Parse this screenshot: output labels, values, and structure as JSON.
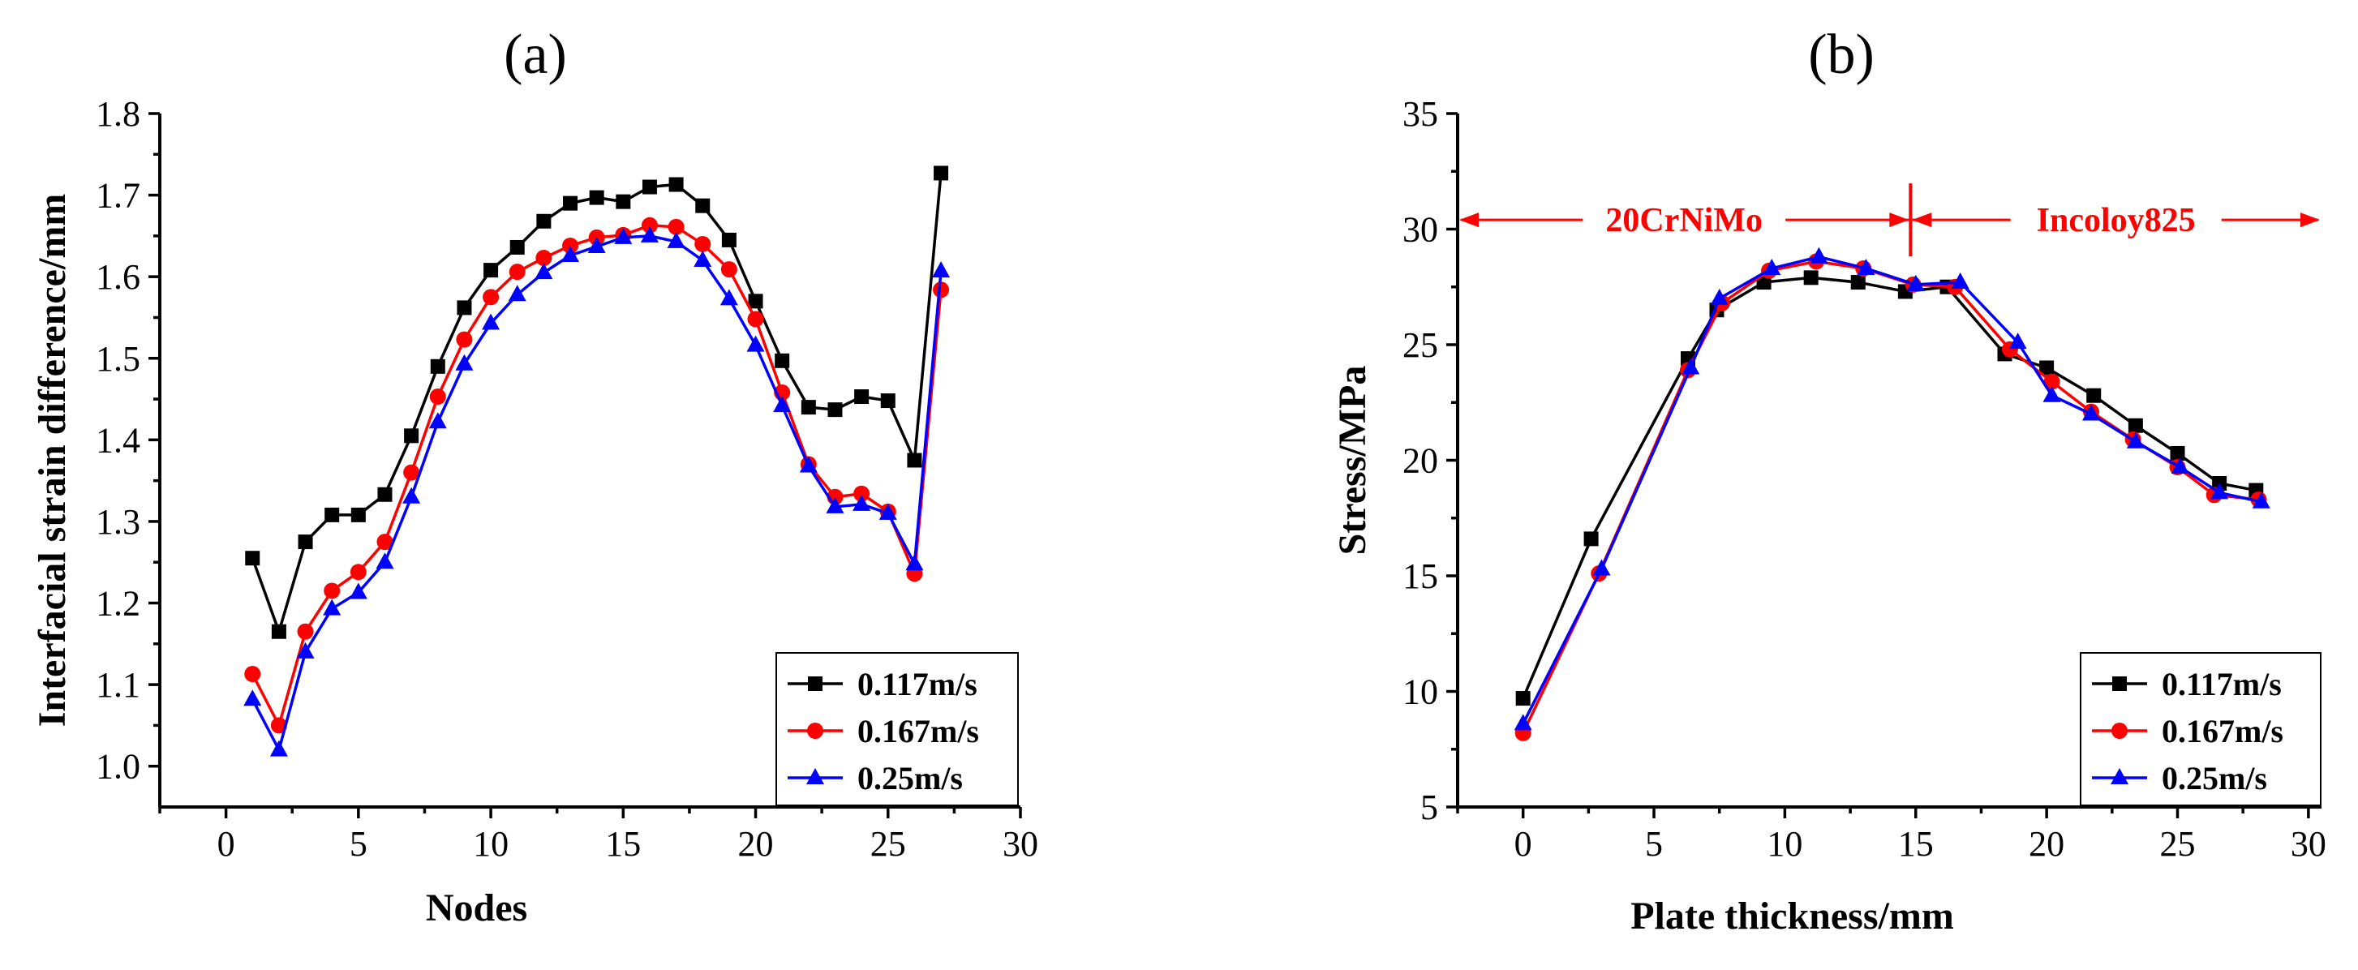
{
  "chart_data": [
    {
      "type": "line",
      "panel_label": "(a)",
      "xlabel": "Nodes",
      "ylabel": "Interfacial strain difference/mm",
      "xlim": [
        -2.5,
        30
      ],
      "ylim": [
        0.95,
        1.8
      ],
      "xticks": [
        0,
        5,
        10,
        15,
        20,
        25,
        30
      ],
      "yticks": [
        1.0,
        1.1,
        1.2,
        1.3,
        1.4,
        1.5,
        1.6,
        1.7,
        1.8
      ],
      "ytick_decimals": 1,
      "legend_position": "bottom-right",
      "series": [
        {
          "name": "0.117m/s",
          "color": "#000000",
          "marker": "square",
          "x": [
            1,
            2,
            3,
            4,
            5,
            6,
            7,
            8,
            9,
            10,
            11,
            12,
            13,
            14,
            15,
            16,
            17,
            18,
            19,
            20,
            21,
            22,
            23,
            24,
            25,
            26,
            27
          ],
          "y": [
            1.255,
            1.165,
            1.275,
            1.308,
            1.308,
            1.333,
            1.405,
            1.49,
            1.562,
            1.608,
            1.636,
            1.668,
            1.69,
            1.697,
            1.692,
            1.71,
            1.713,
            1.687,
            1.645,
            1.57,
            1.497,
            1.44,
            1.437,
            1.453,
            1.448,
            1.375,
            1.727
          ]
        },
        {
          "name": "0.167m/s",
          "color": "#ff0000",
          "marker": "circle",
          "x": [
            1,
            2,
            3,
            4,
            5,
            6,
            7,
            8,
            9,
            10,
            11,
            12,
            13,
            14,
            15,
            16,
            17,
            18,
            19,
            20,
            21,
            22,
            23,
            24,
            25,
            26,
            27
          ],
          "y": [
            1.113,
            1.05,
            1.165,
            1.215,
            1.238,
            1.275,
            1.36,
            1.453,
            1.523,
            1.575,
            1.606,
            1.623,
            1.638,
            1.648,
            1.651,
            1.663,
            1.661,
            1.64,
            1.609,
            1.548,
            1.458,
            1.37,
            1.33,
            1.334,
            1.312,
            1.236,
            1.584
          ]
        },
        {
          "name": "0.25m/s",
          "color": "#0000ff",
          "marker": "triangle",
          "x": [
            1,
            2,
            3,
            4,
            5,
            6,
            7,
            8,
            9,
            10,
            11,
            12,
            13,
            14,
            15,
            16,
            17,
            18,
            19,
            20,
            21,
            22,
            23,
            24,
            25,
            26,
            27
          ],
          "y": [
            1.082,
            1.02,
            1.14,
            1.193,
            1.213,
            1.25,
            1.33,
            1.422,
            1.493,
            1.543,
            1.578,
            1.605,
            1.626,
            1.637,
            1.648,
            1.65,
            1.643,
            1.62,
            1.573,
            1.516,
            1.442,
            1.368,
            1.318,
            1.321,
            1.31,
            1.248,
            1.607
          ]
        }
      ]
    },
    {
      "type": "line",
      "panel_label": "(b)",
      "xlabel": "Plate thickness/mm",
      "ylabel": "Stress/MPa",
      "xlim": [
        -2.5,
        30.5
      ],
      "ylim": [
        5,
        35
      ],
      "xticks": [
        0,
        5,
        10,
        15,
        20,
        25,
        30
      ],
      "yticks": [
        5,
        10,
        15,
        20,
        25,
        30,
        35
      ],
      "ytick_decimals": 0,
      "legend_position": "bottom-right",
      "annotations": {
        "left_region": "20CrNiMo",
        "right_region": "Incoloy825",
        "divider_x": 14.8,
        "arrow_y": 30.4
      },
      "series": [
        {
          "name": "0.117m/s",
          "color": "#000000",
          "marker": "square",
          "x": [
            0,
            2.6,
            6.3,
            7.4,
            9.2,
            11.0,
            12.8,
            14.6,
            16.2,
            18.4,
            20.0,
            21.8,
            23.4,
            25.0,
            26.6,
            28.0
          ],
          "y": [
            9.7,
            16.6,
            24.4,
            26.5,
            27.7,
            27.9,
            27.7,
            27.3,
            27.5,
            24.6,
            24.0,
            22.8,
            21.5,
            20.3,
            19.0,
            18.7
          ]
        },
        {
          "name": "0.167m/s",
          "color": "#ff0000",
          "marker": "circle",
          "x": [
            0,
            2.9,
            6.3,
            7.6,
            9.4,
            11.2,
            13.0,
            14.9,
            16.5,
            18.6,
            20.2,
            21.7,
            23.3,
            25.0,
            26.4,
            28.1
          ],
          "y": [
            8.2,
            15.1,
            23.9,
            26.8,
            28.2,
            28.6,
            28.3,
            27.6,
            27.5,
            24.8,
            23.4,
            22.1,
            20.9,
            19.7,
            18.5,
            18.3
          ]
        },
        {
          "name": "0.25m/s",
          "color": "#0000ff",
          "marker": "triangle",
          "x": [
            0,
            3.0,
            6.4,
            7.5,
            9.5,
            11.3,
            13.1,
            15.0,
            16.7,
            18.9,
            20.2,
            21.7,
            23.4,
            25.1,
            26.6,
            28.2
          ],
          "y": [
            8.6,
            15.3,
            24.0,
            27.0,
            28.3,
            28.8,
            28.3,
            27.6,
            27.7,
            25.1,
            22.8,
            22.0,
            20.8,
            19.7,
            18.6,
            18.2
          ]
        }
      ]
    }
  ]
}
